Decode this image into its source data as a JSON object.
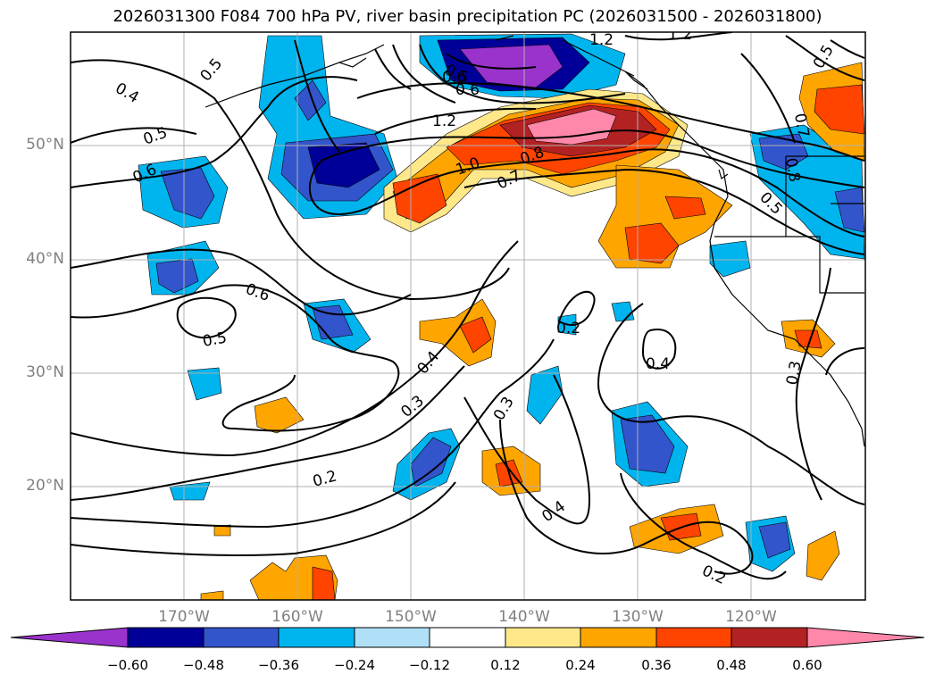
{
  "title": "2026031300 F084 700 hPa PV, river basin precipitation PC (2026031500 - 2026031800)",
  "latitude_labels": [
    "50°N",
    "40°N",
    "30°N",
    "20°N"
  ],
  "longitude_labels": [
    "170°W",
    "160°W",
    "150°W",
    "140°W",
    "130°W",
    "120°W"
  ],
  "colorbar": {
    "tick_labels": [
      "−0.60",
      "−0.48",
      "−0.36",
      "−0.24",
      "−0.12",
      "0.12",
      "0.24",
      "0.36",
      "0.48",
      "0.60"
    ],
    "colors": [
      "#9933cc",
      "#000099",
      "#3355cc",
      "#00b4ee",
      "#b0e0f8",
      "#ffffff",
      "#ffe88a",
      "#ffa500",
      "#ff4400",
      "#b22222",
      "#ff88aa"
    ]
  },
  "contour_labels": [
    "0.4",
    "0.5",
    "0.5",
    "0.6",
    "0.6",
    "0.5",
    "1.2",
    "1.2",
    "1.2",
    "0.5",
    "0.6",
    "0.6",
    "1.0",
    "0.8",
    "0.7",
    "0.8",
    "0.5",
    "0.5",
    "0.4",
    "0.3",
    "0.2",
    "0.3",
    "0.2",
    "0.4",
    "0.4",
    "0.2",
    "0.3",
    "0.7"
  ]
}
